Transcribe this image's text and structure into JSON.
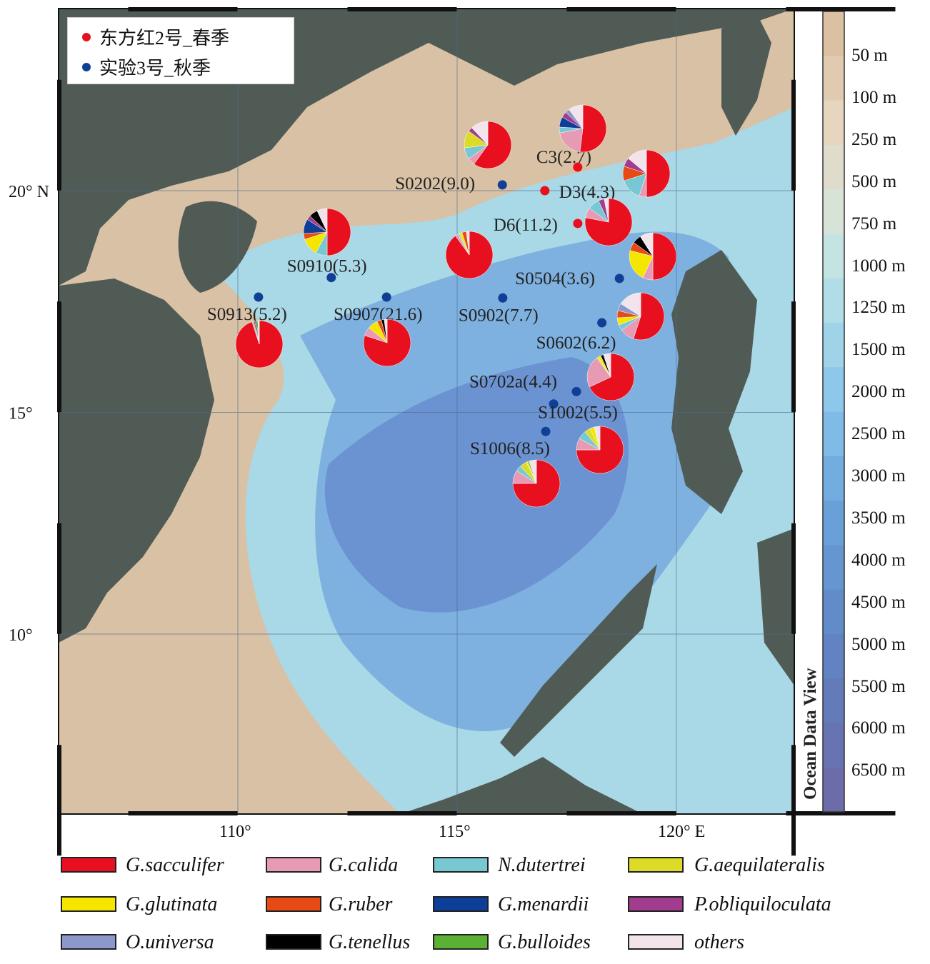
{
  "legend_top": [
    {
      "label": "东方红2号_春季",
      "color": "#e8101f"
    },
    {
      "label": "实验3号_秋季",
      "color": "#123f96"
    }
  ],
  "axes": {
    "x_ticks": [
      "110°",
      "115°",
      "120°  E"
    ],
    "y_ticks": [
      "20° N",
      "15°",
      "10°"
    ],
    "lon_range": [
      105.9,
      122.7
    ],
    "lat_range": [
      5.9,
      24.0
    ]
  },
  "colorbar": {
    "title": "Ocean Data View",
    "labels": [
      "50 m",
      "100 m",
      "250 m",
      "500 m",
      "750 m",
      "1000 m",
      "1250 m",
      "1500 m",
      "2000 m",
      "2500 m",
      "3000 m",
      "3500 m",
      "4000 m",
      "4500 m",
      "5000 m",
      "5500 m",
      "6000 m",
      "6500 m"
    ],
    "colors": [
      "#dcc0a2",
      "#e1cbb0",
      "#e6d6c0",
      "#e0dccb",
      "#d6e3d6",
      "#c4e4e2",
      "#b0dde6",
      "#9fd3e8",
      "#8dc8ea",
      "#7fbbe6",
      "#72addf",
      "#6aa0d8",
      "#6596d0",
      "#628cc8",
      "#6283c2",
      "#647bba",
      "#6873b2",
      "#6c6cab"
    ]
  },
  "stations": [
    {
      "name": "C3(2.7)",
      "cruise": 0,
      "lon": 117.75,
      "lat": 20.53
    },
    {
      "name": "D3(4.3)",
      "cruise": 0,
      "lon": 117.0,
      "lat": 20.0
    },
    {
      "name": "D6(11.2)",
      "cruise": 0,
      "lon": 117.75,
      "lat": 19.26
    },
    {
      "name": "S0202(9.0)",
      "cruise": 1,
      "lon": 116.03,
      "lat": 20.13
    },
    {
      "name": "S0910(5.3)",
      "cruise": 1,
      "lon": 112.13,
      "lat": 18.04
    },
    {
      "name": "S0913(5.2)",
      "cruise": 1,
      "lon": 110.47,
      "lat": 17.6
    },
    {
      "name": "S0907(21.6)",
      "cruise": 1,
      "lon": 113.39,
      "lat": 17.6
    },
    {
      "name": "S0902(7.7)",
      "cruise": 1,
      "lon": 116.04,
      "lat": 17.58
    },
    {
      "name": "S0504(3.6)",
      "cruise": 1,
      "lon": 118.7,
      "lat": 18.02
    },
    {
      "name": "S0602(6.2)",
      "cruise": 1,
      "lon": 118.3,
      "lat": 17.02
    },
    {
      "name": "S0702a(4.4)",
      "cruise": 1,
      "lon": 117.72,
      "lat": 15.47
    },
    {
      "name": "S1002(5.5)",
      "cruise": 1,
      "lon": 117.2,
      "lat": 15.19
    },
    {
      "name": "S1006(8.5)",
      "cruise": 1,
      "lon": 117.02,
      "lat": 14.57
    }
  ],
  "species": [
    {
      "label": "G.sacculifer",
      "color": "#e8101f"
    },
    {
      "label": "G.calida",
      "color": "#e79ab3"
    },
    {
      "label": "N.dutertrei",
      "color": "#78c8d4"
    },
    {
      "label": "G.aequilateralis",
      "color": "#dcdc28"
    },
    {
      "label": "G.glutinata",
      "color": "#f5e600"
    },
    {
      "label": "G.ruber",
      "color": "#e84a14"
    },
    {
      "label": "G.menardii",
      "color": "#0d3f99"
    },
    {
      "label": "P.obliquiloculata",
      "color": "#a23c8f"
    },
    {
      "label": "O.universa",
      "color": "#8c98cc"
    },
    {
      "label": "G.tenellus",
      "color": "#000000"
    },
    {
      "label": "G.bulloides",
      "color": "#5bb133"
    },
    {
      "label": "others",
      "color": "#f2e4ea"
    }
  ],
  "chart_data": {
    "type": "pie",
    "note_units": "fraction of assemblage (estimated)",
    "pies": [
      {
        "station": "S0202(9.0)",
        "values": [
          0.6,
          0.05,
          0.08,
          0.12,
          0,
          0,
          0,
          0.03,
          0,
          0,
          0,
          0.12
        ]
      },
      {
        "station": "C3(2.7)",
        "values": [
          0.52,
          0.2,
          0.04,
          0,
          0,
          0,
          0.07,
          0.04,
          0.03,
          0,
          0,
          0.1
        ]
      },
      {
        "station": "D3(4.3)",
        "values": [
          0.5,
          0.05,
          0.15,
          0,
          0,
          0.1,
          0,
          0.06,
          0,
          0,
          0,
          0.14
        ]
      },
      {
        "station": "D6(11.2)",
        "values": [
          0.78,
          0.07,
          0.08,
          0,
          0,
          0,
          0,
          0.04,
          0,
          0,
          0,
          0.03
        ]
      },
      {
        "station": "S0504(3.6)",
        "values": [
          0.5,
          0.07,
          0,
          0,
          0.22,
          0.06,
          0,
          0,
          0,
          0.06,
          0,
          0.09
        ]
      },
      {
        "station": "S0602(6.2)",
        "values": [
          0.55,
          0.1,
          0.04,
          0,
          0.05,
          0.05,
          0,
          0,
          0.05,
          0,
          0,
          0.16
        ]
      },
      {
        "station": "S0702a(4.4)",
        "values": [
          0.68,
          0.22,
          0,
          0.01,
          0.02,
          0,
          0,
          0,
          0,
          0.02,
          0,
          0.05
        ]
      },
      {
        "station": "S1002(5.5)",
        "values": [
          0.75,
          0.08,
          0.06,
          0.04,
          0.03,
          0,
          0,
          0,
          0,
          0,
          0,
          0.04
        ]
      },
      {
        "station": "S1006(8.5)",
        "values": [
          0.75,
          0.09,
          0.04,
          0.05,
          0.01,
          0,
          0,
          0,
          0,
          0,
          0.01,
          0.05
        ]
      },
      {
        "station": "S0910(5.3)",
        "values": [
          0.5,
          0,
          0.08,
          0,
          0.12,
          0.04,
          0.1,
          0.03,
          0,
          0.06,
          0,
          0.07
        ]
      },
      {
        "station": "S0902(7.7)",
        "values": [
          0.9,
          0.02,
          0.01,
          0,
          0.02,
          0.03,
          0,
          0,
          0,
          0,
          0,
          0.02
        ]
      },
      {
        "station": "S0913(5.2)",
        "values": [
          0.95,
          0,
          0.01,
          0,
          0,
          0.01,
          0.01,
          0,
          0,
          0,
          0.01,
          0.01
        ]
      },
      {
        "station": "S0907(21.6)",
        "values": [
          0.8,
          0.06,
          0,
          0,
          0.07,
          0.03,
          0,
          0,
          0,
          0.02,
          0,
          0.02
        ]
      }
    ]
  }
}
